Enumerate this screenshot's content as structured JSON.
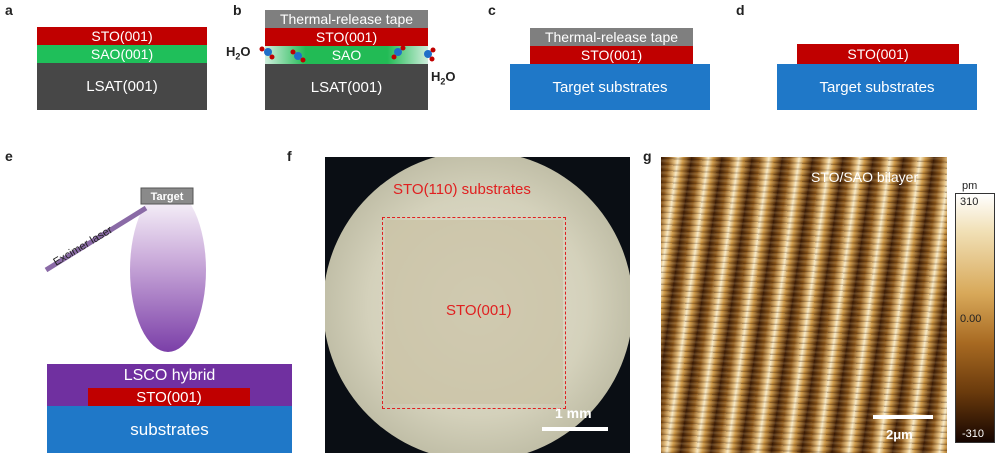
{
  "panel_labels": {
    "a": "a",
    "b": "b",
    "c": "c",
    "d": "d",
    "e": "e",
    "f": "f",
    "g": "g"
  },
  "panel_a": {
    "top": "STO(001)",
    "middle": "SAO(001)",
    "substrate": "LSAT(001)"
  },
  "panel_b": {
    "tape": "Thermal-release tape",
    "top": "STO(001)",
    "sacrificial": "SAO",
    "substrate": "LSAT(001)",
    "water_left": "H",
    "water_right": "H",
    "water_sub": "2",
    "water_o": "O"
  },
  "panel_c": {
    "tape": "Thermal-release tape",
    "film": "STO(001)",
    "substrate": "Target substrates"
  },
  "panel_d": {
    "film": "STO(001)",
    "substrate": "Target substrates"
  },
  "panel_e": {
    "target": "Target",
    "laser": "Excimer laser",
    "hybrid": "LSCO hybrid",
    "film": "STO(001)",
    "substrate": "substrates"
  },
  "panel_f": {
    "outer_label": "STO(110) substrates",
    "inner_label": "STO(001)",
    "scalebar": "1 mm"
  },
  "panel_g": {
    "title": "STO/SAO bilayer",
    "scalebar": "2μm",
    "colorbar": {
      "unit": "pm",
      "max": "310",
      "mid": "0.00",
      "min": "-310"
    }
  },
  "colors": {
    "sto": "#c00000",
    "sao": "#1fbf5a",
    "lsat": "#474747",
    "tape": "#7f7f7f",
    "target": "#1f78c8",
    "lsco": "#7030a0"
  }
}
